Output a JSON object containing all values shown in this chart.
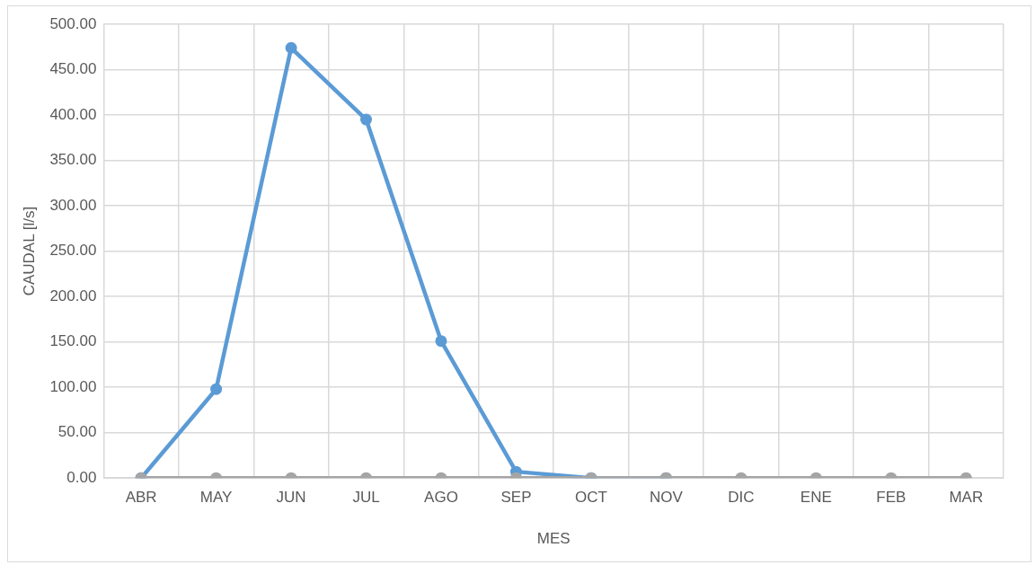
{
  "chart_data": {
    "type": "line",
    "xlabel": "MES",
    "ylabel": "CAUDAL [l/s]",
    "categories": [
      "ABR",
      "MAY",
      "JUN",
      "JUL",
      "AGO",
      "SEP",
      "OCT",
      "NOV",
      "DIC",
      "ENE",
      "FEB",
      "MAR"
    ],
    "series": [
      {
        "color": "#5b9bd5",
        "values": [
          0,
          98,
          474,
          395,
          151,
          7,
          0,
          0,
          null,
          null,
          null,
          null
        ]
      },
      {
        "color": "#a5a5a5",
        "values": [
          0,
          0,
          0,
          0,
          0,
          0,
          0,
          0,
          0,
          0,
          0,
          0
        ]
      }
    ],
    "ylim": [
      0,
      500
    ],
    "yticks": [
      {
        "value": 0,
        "label": "0.00"
      },
      {
        "value": 50,
        "label": "50.00"
      },
      {
        "value": 100,
        "label": "100.00"
      },
      {
        "value": 150,
        "label": "150.00"
      },
      {
        "value": 200,
        "label": "200.00"
      },
      {
        "value": 250,
        "label": "250.00"
      },
      {
        "value": 300,
        "label": "300.00"
      },
      {
        "value": 350,
        "label": "350.00"
      },
      {
        "value": 400,
        "label": "400.00"
      },
      {
        "value": 450,
        "label": "450.00"
      },
      {
        "value": 500,
        "label": "500.00"
      }
    ],
    "grid": true,
    "legend": false,
    "marker": "circle",
    "line_style": "solid"
  }
}
